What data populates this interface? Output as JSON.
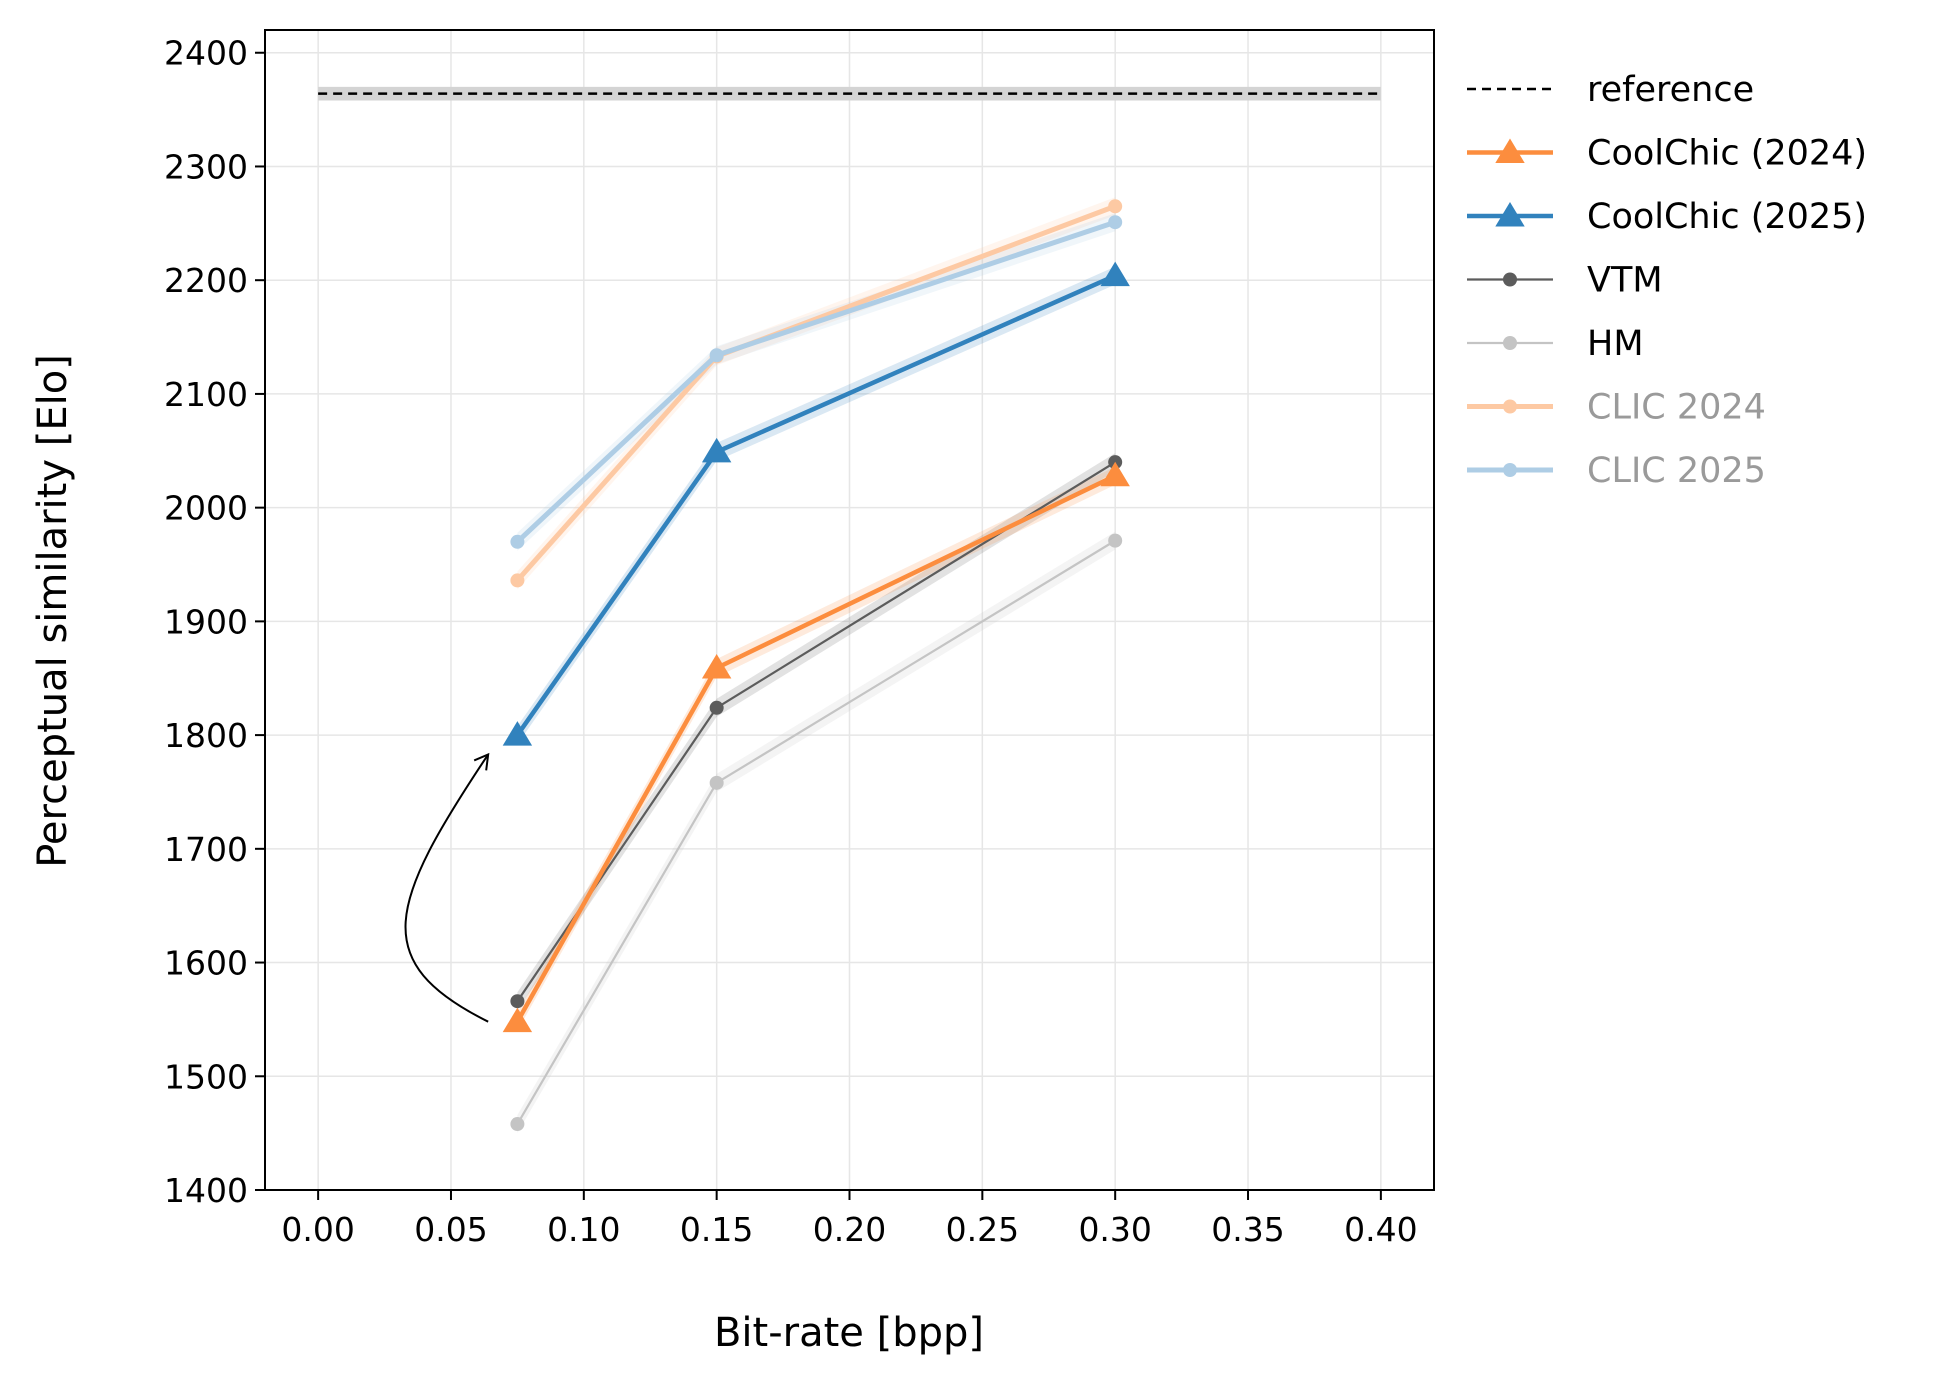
{
  "chart_data": {
    "type": "line",
    "title": "",
    "xlabel": "Bit-rate [bpp]",
    "ylabel": "Perceptual similarity [Elo]",
    "xlim": [
      -0.02,
      0.42
    ],
    "ylim": [
      1400,
      2420
    ],
    "xticks": [
      0.0,
      0.05,
      0.1,
      0.15,
      0.2,
      0.25,
      0.3,
      0.35,
      0.4
    ],
    "xtick_labels": [
      "0.00",
      "0.05",
      "0.10",
      "0.15",
      "0.20",
      "0.25",
      "0.30",
      "0.35",
      "0.40"
    ],
    "yticks": [
      1400,
      1500,
      1600,
      1700,
      1800,
      1900,
      2000,
      2100,
      2200,
      2300,
      2400
    ],
    "ytick_labels": [
      "1400",
      "1500",
      "1600",
      "1700",
      "1800",
      "1900",
      "2000",
      "2100",
      "2200",
      "2300",
      "2400"
    ],
    "grid": true,
    "legend_position": "outside-right",
    "reference": {
      "name": "reference",
      "x_range": [
        0.0,
        0.4
      ],
      "value": 2364,
      "band": [
        2358,
        2370
      ],
      "color": "#000000"
    },
    "series": [
      {
        "name": "CLIC 2024",
        "x": [
          0.075,
          0.15,
          0.3
        ],
        "values": [
          1936,
          2133,
          2265
        ],
        "color": "#fdc9a3",
        "marker": "circle",
        "width": 5,
        "muted_label": true
      },
      {
        "name": "CLIC 2025",
        "x": [
          0.075,
          0.15,
          0.3
        ],
        "values": [
          1970,
          2134,
          2251
        ],
        "color": "#aecde5",
        "marker": "circle",
        "width": 5,
        "muted_label": true
      },
      {
        "name": "HM",
        "x": [
          0.075,
          0.15,
          0.3
        ],
        "values": [
          1458,
          1758,
          1971
        ],
        "color": "#c4c4c4",
        "marker": "circle",
        "width": 2.2
      },
      {
        "name": "VTM",
        "x": [
          0.075,
          0.15,
          0.3
        ],
        "values": [
          1566,
          1824,
          2040
        ],
        "color": "#5c5c5c",
        "marker": "circle",
        "width": 2.2
      },
      {
        "name": "CoolChic (2024)",
        "x": [
          0.075,
          0.15,
          0.3
        ],
        "values": [
          1548,
          1859,
          2028
        ],
        "color": "#fc8d3e",
        "marker": "triangle",
        "width": 4.5
      },
      {
        "name": "CoolChic (2025)",
        "x": [
          0.075,
          0.15,
          0.3
        ],
        "values": [
          1800,
          2049,
          2204
        ],
        "color": "#3182bd",
        "marker": "triangle",
        "width": 4.5
      }
    ],
    "legend_order": [
      "reference",
      "CoolChic (2024)",
      "CoolChic (2025)",
      "VTM",
      "HM",
      "CLIC 2024",
      "CLIC 2025"
    ],
    "annotation": {
      "type": "curved-arrow",
      "from": [
        0.064,
        1548
      ],
      "to": [
        0.064,
        1783
      ]
    }
  }
}
